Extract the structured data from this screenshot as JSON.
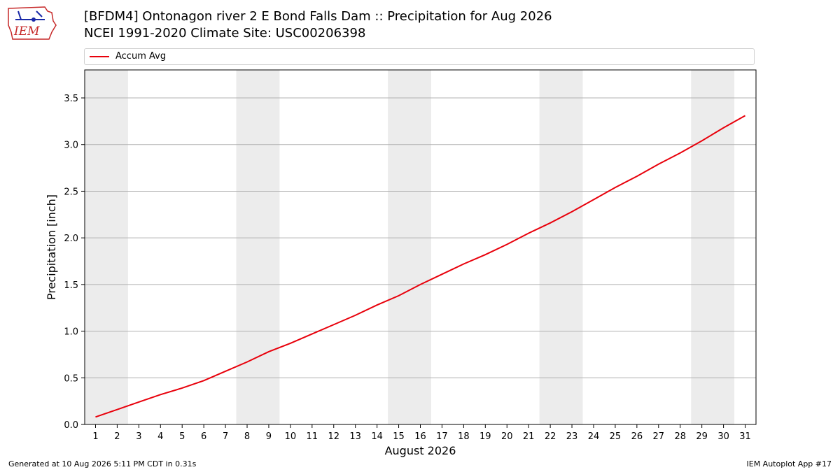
{
  "logo": {
    "text": "IEM"
  },
  "header": {
    "title_line1": "[BFDM4] Ontonagon river 2 E Bond Falls Dam :: Precipitation for Aug 2026",
    "title_line2": "NCEI 1991-2020 Climate Site: USC00206398"
  },
  "footer": {
    "left": "Generated at 10 Aug 2026 5:11 PM CDT in 0.31s",
    "right": "IEM Autoplot App #17"
  },
  "colors": {
    "line": "#e8000b",
    "weekend_band": "#ececec",
    "grid": "#b0b0b0"
  },
  "chart_data": {
    "type": "line",
    "xlabel": "August 2026",
    "ylabel": "Precipitation [inch]",
    "xlim": [
      0.5,
      31.5
    ],
    "ylim": [
      0,
      3.8
    ],
    "x": [
      1,
      2,
      3,
      4,
      5,
      6,
      7,
      8,
      9,
      10,
      11,
      12,
      13,
      14,
      15,
      16,
      17,
      18,
      19,
      20,
      21,
      22,
      23,
      24,
      25,
      26,
      27,
      28,
      29,
      30,
      31
    ],
    "x_ticks": [
      "1",
      "2",
      "3",
      "4",
      "5",
      "6",
      "7",
      "8",
      "9",
      "10",
      "11",
      "12",
      "13",
      "14",
      "15",
      "16",
      "17",
      "18",
      "19",
      "20",
      "21",
      "22",
      "23",
      "24",
      "25",
      "26",
      "27",
      "28",
      "29",
      "30",
      "31"
    ],
    "y_ticks": [
      "0.0",
      "0.5",
      "1.0",
      "1.5",
      "2.0",
      "2.5",
      "3.0",
      "3.5"
    ],
    "y_tick_values": [
      0,
      0.5,
      1.0,
      1.5,
      2.0,
      2.5,
      3.0,
      3.5
    ],
    "weekend_bands": [
      [
        0.5,
        2.5
      ],
      [
        7.5,
        9.5
      ],
      [
        14.5,
        16.5
      ],
      [
        21.5,
        23.5
      ],
      [
        28.5,
        30.5
      ]
    ],
    "grid": "horizontal",
    "legend": {
      "position": "top",
      "entries": [
        "Accum Avg"
      ]
    },
    "series": [
      {
        "name": "Accum Avg",
        "values": [
          0.08,
          0.16,
          0.24,
          0.32,
          0.39,
          0.47,
          0.57,
          0.67,
          0.78,
          0.87,
          0.97,
          1.07,
          1.17,
          1.28,
          1.38,
          1.5,
          1.61,
          1.72,
          1.82,
          1.93,
          2.05,
          2.16,
          2.28,
          2.41,
          2.54,
          2.66,
          2.79,
          2.91,
          3.04,
          3.18,
          3.31
        ]
      }
    ]
  }
}
